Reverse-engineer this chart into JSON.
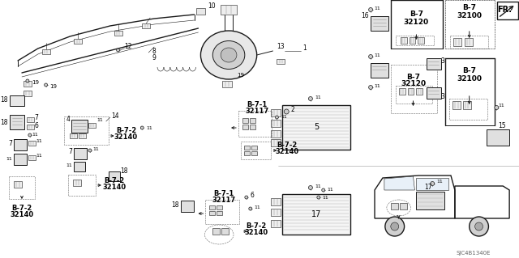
{
  "background_color": "#ffffff",
  "fig_width": 6.4,
  "fig_height": 3.19,
  "dpi": 100,
  "line_color": "#1a1a1a",
  "watermark": "SJC4B1340E",
  "part_boxes": {
    "B-7-2_32140": "B-7-2\n32140",
    "B-7-1_32117": "B-7-1\n32117",
    "B-7_32120": "B-7\n32120",
    "B-7_32100": "B-7\n32100"
  }
}
